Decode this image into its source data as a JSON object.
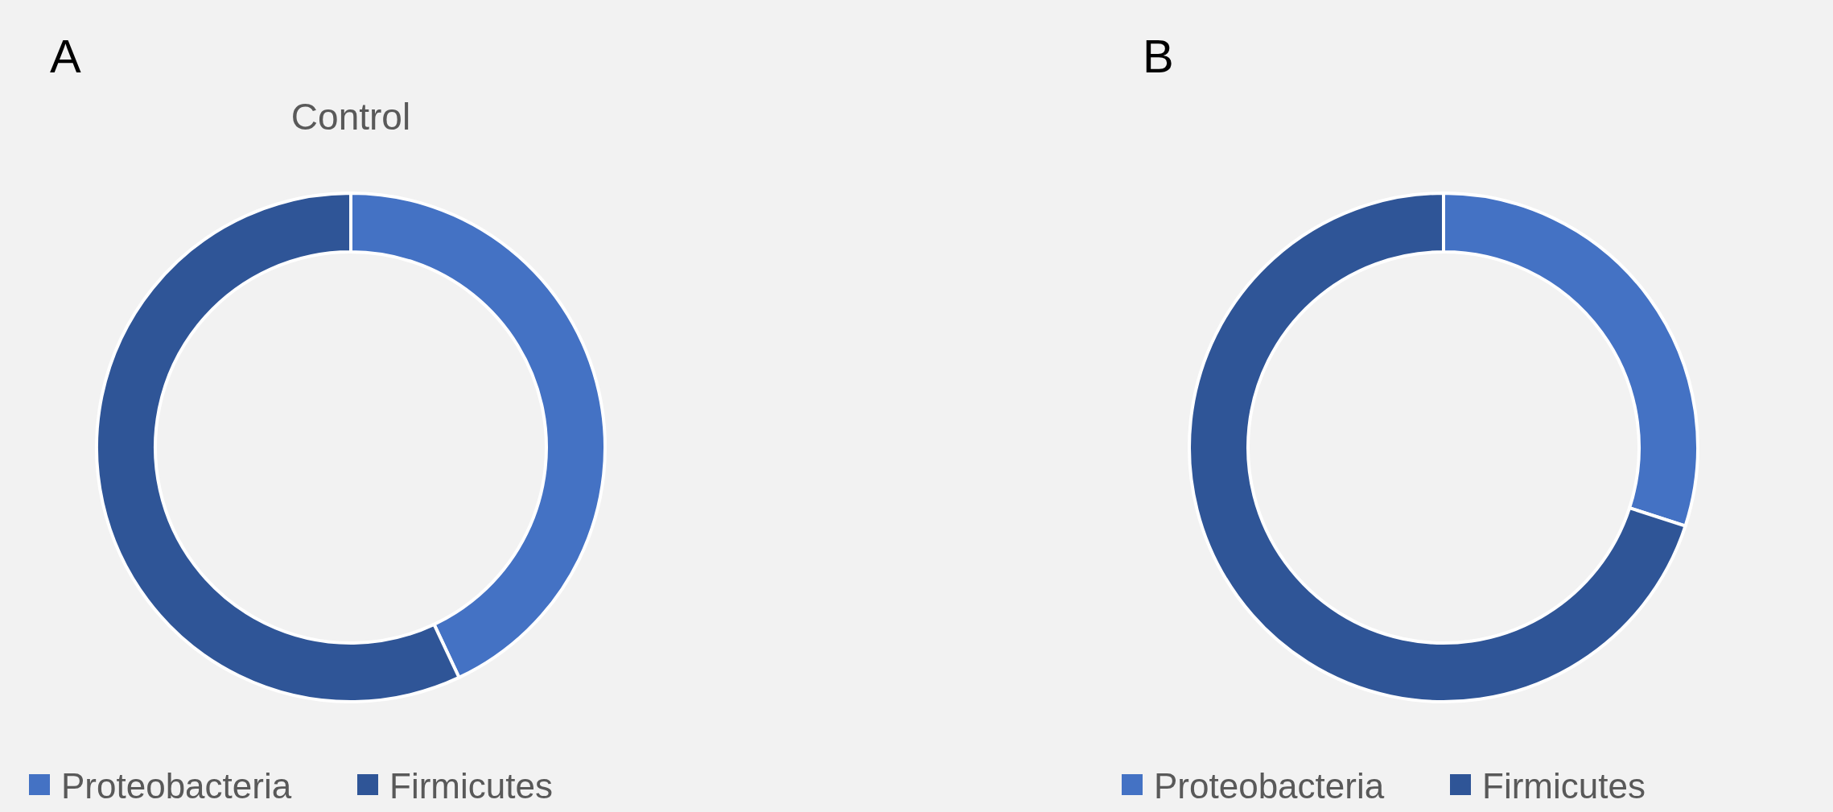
{
  "chart_data": [
    {
      "type": "donut",
      "title": "Control",
      "annotations": [
        "A"
      ],
      "categories": [
        "Proteobacteria",
        "Firmicutes"
      ],
      "values": [
        43,
        57
      ],
      "colors": [
        "#4472c4",
        "#2f5597"
      ],
      "legend": "bottom"
    },
    {
      "type": "donut",
      "annotations": [
        "B"
      ],
      "categories": [
        "Proteobacteria",
        "Firmicutes"
      ],
      "values": [
        30,
        70
      ],
      "colors": [
        "#4472c4",
        "#2f5597"
      ],
      "legend": "bottom"
    }
  ]
}
